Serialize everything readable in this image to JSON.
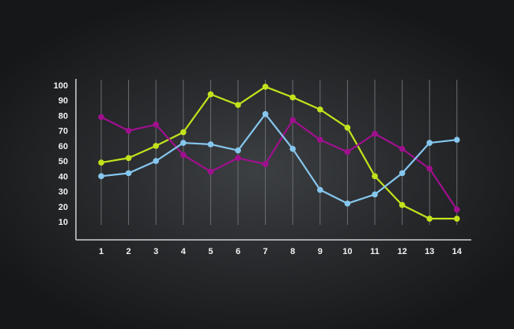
{
  "chart_data": {
    "type": "line",
    "title": "",
    "xlabel": "",
    "ylabel": "",
    "x": [
      1,
      2,
      3,
      4,
      5,
      6,
      7,
      8,
      9,
      10,
      11,
      12,
      13,
      14
    ],
    "x_tick_labels": [
      "1",
      "2",
      "3",
      "4",
      "5",
      "6",
      "7",
      "8",
      "9",
      "10",
      "11",
      "12",
      "13",
      "14"
    ],
    "y_ticks": [
      10,
      20,
      30,
      40,
      50,
      60,
      70,
      80,
      90,
      100
    ],
    "y_tick_labels": [
      "10",
      "20",
      "30",
      "40",
      "50",
      "60",
      "70",
      "80",
      "90",
      "100"
    ],
    "ylim": [
      0,
      100
    ],
    "grid": "vertical",
    "legend": "none",
    "series": [
      {
        "color": "#c3e21c",
        "values": [
          49,
          52,
          60,
          69,
          94,
          87,
          99,
          92,
          84,
          72,
          40,
          21,
          12,
          12
        ]
      },
      {
        "color": "#a0108e",
        "values": [
          79,
          70,
          74,
          54,
          43,
          52,
          48,
          77,
          64,
          56,
          68,
          58,
          45,
          18
        ]
      },
      {
        "color": "#86c7ee",
        "values": [
          40,
          42,
          50,
          62,
          61,
          57,
          81,
          58,
          31,
          22,
          28,
          42,
          62,
          64
        ]
      }
    ]
  }
}
